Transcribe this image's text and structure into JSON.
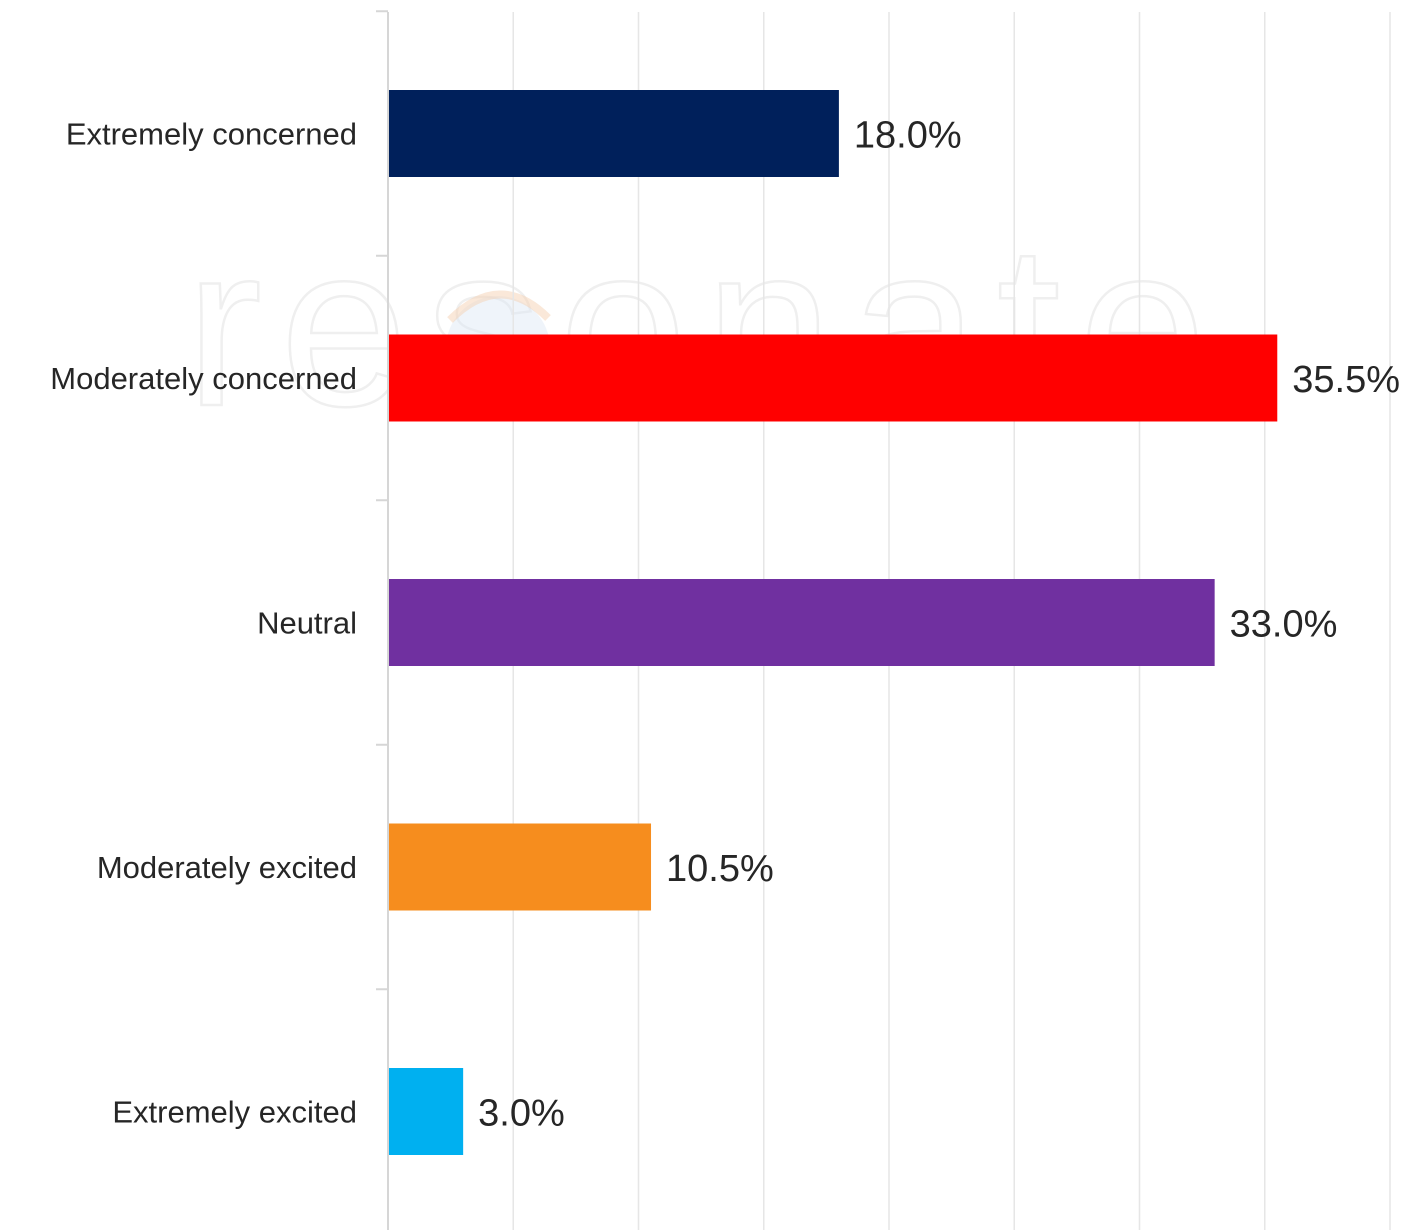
{
  "chart_data": {
    "type": "bar",
    "orientation": "horizontal",
    "categories": [
      "Extremely concerned",
      "Moderately concerned",
      "Neutral",
      "Moderately excited",
      "Extremely excited"
    ],
    "values": [
      18.0,
      35.5,
      33.0,
      10.5,
      3.0
    ],
    "value_labels": [
      "18.0%",
      "35.5%",
      "33.0%",
      "10.5%",
      "3.0%"
    ],
    "colors": [
      "#00205B",
      "#FF0000",
      "#7030A0",
      "#F68D1E",
      "#00B0F0"
    ],
    "title": "",
    "xlabel": "",
    "ylabel": "",
    "xlim": [
      0,
      40
    ],
    "grid": true,
    "legend": "none"
  },
  "watermark": {
    "text": "resonate"
  }
}
